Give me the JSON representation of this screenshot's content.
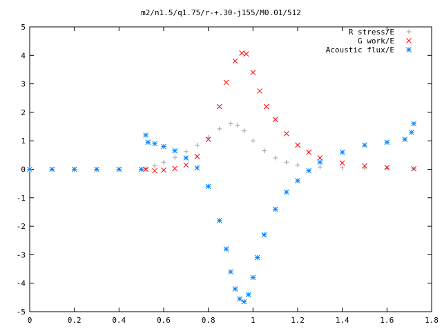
{
  "chart_data": {
    "type": "scatter",
    "title": "m2/n1.5/q1.75/r-+.30-j155/M0.01/512",
    "xlabel": "",
    "ylabel": "",
    "xlim": [
      0,
      1.8
    ],
    "ylim": [
      -5,
      5
    ],
    "x_ticks": [
      0,
      0.2,
      0.4,
      0.6,
      0.8,
      1,
      1.2,
      1.4,
      1.6,
      1.8
    ],
    "x_tick_labels": [
      "0",
      "0.2",
      "0.4",
      "0.6",
      "0.8",
      "1",
      "1.2",
      "1.4",
      "1.6",
      "1.8"
    ],
    "y_ticks": [
      -5,
      -4,
      -3,
      -2,
      -1,
      0,
      1,
      2,
      3,
      4,
      5
    ],
    "y_tick_labels": [
      "-5",
      "-4",
      "-3",
      "-2",
      "-1",
      "0",
      "1",
      "2",
      "3",
      "4",
      "5"
    ],
    "grid": false,
    "legend_position": "top-right",
    "series": [
      {
        "name": "R stress/E",
        "marker": "+",
        "color": "#a0a0a0",
        "x": [
          0.52,
          0.56,
          0.6,
          0.65,
          0.7,
          0.75,
          0.8,
          0.85,
          0.9,
          0.93,
          0.96,
          1.0,
          1.05,
          1.1,
          1.15,
          1.2,
          1.3,
          1.4,
          1.5,
          1.6,
          1.72
        ],
        "y": [
          0.02,
          0.12,
          0.25,
          0.42,
          0.62,
          0.85,
          1.12,
          1.42,
          1.6,
          1.55,
          1.35,
          1.0,
          0.65,
          0.4,
          0.25,
          0.15,
          0.08,
          0.05,
          0.04,
          0.03,
          0.02
        ]
      },
      {
        "name": "G work/E",
        "marker": "x",
        "color": "#ff0000",
        "x": [
          0.52,
          0.56,
          0.6,
          0.65,
          0.7,
          0.75,
          0.8,
          0.85,
          0.88,
          0.92,
          0.95,
          0.97,
          1.0,
          1.03,
          1.06,
          1.1,
          1.15,
          1.2,
          1.25,
          1.3,
          1.4,
          1.5,
          1.6,
          1.72
        ],
        "y": [
          0.0,
          -0.05,
          -0.03,
          0.03,
          0.15,
          0.45,
          1.05,
          2.2,
          3.05,
          3.8,
          4.08,
          4.05,
          3.4,
          2.75,
          2.2,
          1.75,
          1.25,
          0.85,
          0.6,
          0.4,
          0.22,
          0.12,
          0.06,
          0.02
        ]
      },
      {
        "name": "Acoustic flux/E",
        "marker": "*",
        "color": "#0080ff",
        "x": [
          0.0,
          0.1,
          0.2,
          0.3,
          0.4,
          0.5,
          0.52,
          0.53,
          0.56,
          0.6,
          0.65,
          0.7,
          0.75,
          0.8,
          0.85,
          0.88,
          0.9,
          0.92,
          0.94,
          0.96,
          0.98,
          1.0,
          1.02,
          1.05,
          1.1,
          1.15,
          1.2,
          1.25,
          1.3,
          1.4,
          1.5,
          1.6,
          1.68,
          1.71,
          1.72
        ],
        "y": [
          0.0,
          0.0,
          0.0,
          0.0,
          0.0,
          0.0,
          1.2,
          0.95,
          0.9,
          0.8,
          0.65,
          0.4,
          0.05,
          -0.6,
          -1.8,
          -2.8,
          -3.6,
          -4.2,
          -4.55,
          -4.65,
          -4.4,
          -3.8,
          -3.1,
          -2.3,
          -1.4,
          -0.8,
          -0.4,
          -0.05,
          0.25,
          0.6,
          0.85,
          0.95,
          1.05,
          1.3,
          1.6
        ]
      }
    ]
  }
}
